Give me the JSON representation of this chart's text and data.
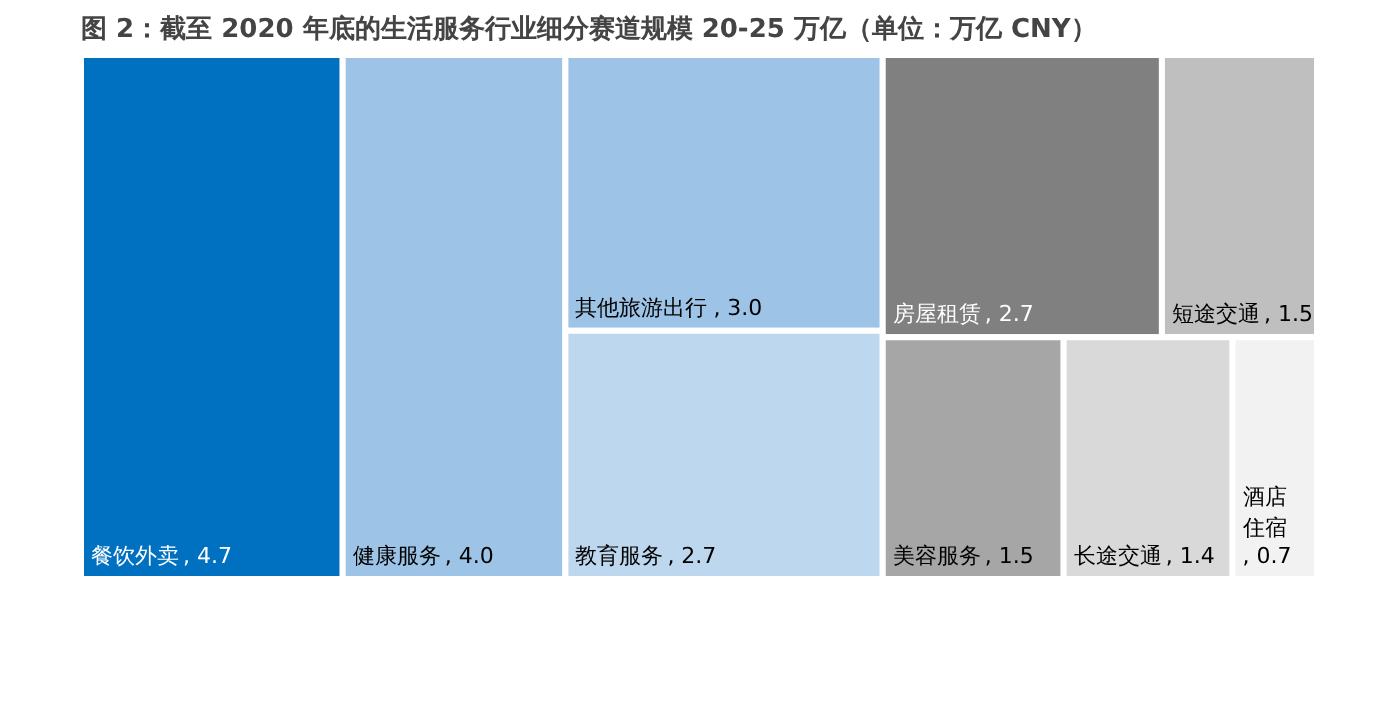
{
  "chart_data": {
    "type": "other",
    "title": "图 2：截至 2020 年底的生活服务行业细分赛道规模 20-25 万亿（单位：万亿 CNY）",
    "categories": [
      "餐饮外卖",
      "健康服务",
      "其他旅游出行",
      "教育服务",
      "房屋租赁",
      "短途交通",
      "美容服务",
      "长途交通",
      "酒店住宿"
    ],
    "value_labels": [
      ", 4.7",
      ", 4.0",
      ", 3.0",
      ", 2.7",
      ", 2.7",
      ", 1.5",
      ", 1.5",
      ", 1.4",
      ", 0.7"
    ],
    "values": [
      4.7,
      4.0,
      3.0,
      2.7,
      2.7,
      1.5,
      1.5,
      1.4,
      0.7
    ],
    "colors": [
      "#0070c0",
      "#9dc3e6",
      "#9dc3e6",
      "#bdd7ee",
      "#808080",
      "#bfbfbf",
      "#a6a6a6",
      "#d9d9d9",
      "#f2f2f2"
    ],
    "data_labels": true
  }
}
